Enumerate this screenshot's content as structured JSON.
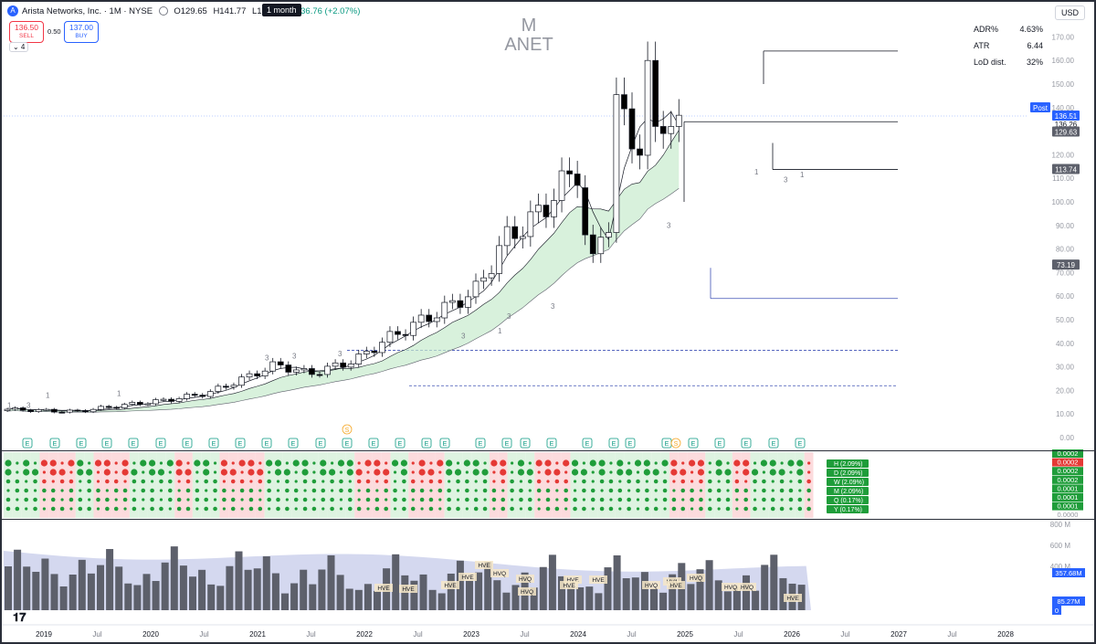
{
  "header": {
    "symbol_title": "Arista Networks, Inc. · 1M · NYSE",
    "open": "O129.65",
    "high": "H141.77",
    "low": "L122.37",
    "change": "C136.76 (+2.07%)",
    "interval_tooltip": "1 month",
    "currency": "USD",
    "logo_letter": "A"
  },
  "trade": {
    "sell_price": "136.50",
    "sell_label": "SELL",
    "spread": "0.50",
    "buy_price": "137.00",
    "buy_label": "BUY",
    "collapse_label": "⌄ 4"
  },
  "watermark": {
    "interval": "M",
    "ticker": "ANET"
  },
  "stats": [
    {
      "label": "ADR%",
      "value": "4.63%"
    },
    {
      "label": "ATR",
      "value": "6.44"
    },
    {
      "label": "LoD dist.",
      "value": "32%"
    }
  ],
  "price_axis": {
    "ticks": [
      "170.00",
      "160.00",
      "150.00",
      "140.00",
      "130.00",
      "120.00",
      "110.00",
      "100.00",
      "90.00",
      "80.00",
      "70.00",
      "60.00",
      "50.00",
      "40.00",
      "30.00",
      "20.00",
      "10.00",
      "0.00"
    ],
    "badges": [
      {
        "text": "Post",
        "color": "#2962ff"
      },
      {
        "text": "136.51",
        "color": "#2962ff"
      },
      {
        "text": "136.26",
        "color": "none"
      },
      {
        "text": "11d 22h",
        "color": "none"
      },
      {
        "text": "129.63",
        "color": "#5d606b"
      },
      {
        "text": "113.74",
        "color": "#5d606b"
      },
      {
        "text": "73.19",
        "color": "#5d606b"
      }
    ]
  },
  "indicator_axis": {
    "values": [
      "0.0002",
      "0.0002",
      "0.0002",
      "0.0002",
      "0.0001",
      "0.0001",
      "0.0001",
      "0.0000"
    ],
    "highlight": "0.0002",
    "legend": [
      "H (2.09%)",
      "D (2.09%)",
      "W (2.09%)",
      "M (2.09%)",
      "Q (0.17%)",
      "Y (0.17%)"
    ]
  },
  "volume_axis": {
    "ticks": [
      "800 M",
      "600 M",
      "400 M"
    ],
    "badges": [
      "357.68M",
      "85.27M",
      "0"
    ]
  },
  "time_axis": [
    "2019",
    "Jul",
    "2020",
    "Jul",
    "2021",
    "Jul",
    "2022",
    "Jul",
    "2023",
    "Jul",
    "2024",
    "Jul",
    "2025",
    "Jul",
    "2026",
    "Jul",
    "2027",
    "Jul",
    "2028"
  ],
  "volume_labels": [
    "HVE",
    "HVE",
    "HVE",
    "HVE",
    "HVE",
    "HVE",
    "HVE",
    "HVQ",
    "HVQ",
    "HV1",
    "HVQ",
    "HVQ",
    "HVE",
    "HVQ",
    "HVE",
    "HVE",
    "HVQ",
    "HVQ"
  ],
  "event_markers": {
    "earnings": "E",
    "dividend": "S"
  },
  "candle_numbers": [
    "1",
    "3",
    "1",
    "1",
    "3",
    "3",
    "3",
    "3",
    "1",
    "3",
    "3",
    "3",
    "1",
    "3",
    "1"
  ],
  "colors": {
    "up": "#ffffff",
    "down": "#000000",
    "green": "#1f9d3a",
    "red": "#e53935",
    "accent": "#2962ff",
    "fill": "#c8ebcd"
  },
  "chart_data": {
    "type": "candlestick",
    "xlabel": "",
    "ylabel": "",
    "ylim": [
      0,
      175
    ],
    "close_start": 10,
    "close_end": 136.76,
    "horizontal_levels": [
      164,
      113.74,
      59,
      37,
      22
    ]
  }
}
